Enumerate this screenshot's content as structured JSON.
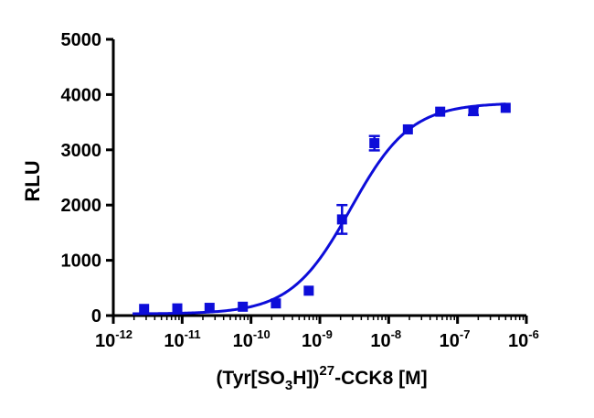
{
  "chart_data": {
    "type": "scatter",
    "xlabel": "(Tyr[SO3H])27-CCK8 [M]",
    "xlabel_parts": {
      "prefix": "(Tyr[SO",
      "sub": "3",
      "mid": "H])",
      "sup": "27",
      "suffix": "-CCK8 [M]"
    },
    "ylabel": "RLU",
    "x_scale": "log",
    "xlim": [
      1e-12,
      1e-06
    ],
    "ylim": [
      0,
      5000
    ],
    "grid": false,
    "legend": "none",
    "color": "#0d0dd9",
    "x_ticks": [
      {
        "base": "10",
        "exp": "-12"
      },
      {
        "base": "10",
        "exp": "-11"
      },
      {
        "base": "10",
        "exp": "-10"
      },
      {
        "base": "10",
        "exp": "-9"
      },
      {
        "base": "10",
        "exp": "-8"
      },
      {
        "base": "10",
        "exp": "-7"
      },
      {
        "base": "10",
        "exp": "-6"
      }
    ],
    "y_ticks": [
      "0",
      "1000",
      "2000",
      "3000",
      "4000",
      "5000"
    ],
    "series": [
      {
        "points": [
          {
            "x": 2.8e-12,
            "y": 120,
            "err": 0
          },
          {
            "x": 8.5e-12,
            "y": 130,
            "err": 0
          },
          {
            "x": 2.5e-11,
            "y": 140,
            "err": 0
          },
          {
            "x": 7.6e-11,
            "y": 160,
            "err": 0
          },
          {
            "x": 2.3e-10,
            "y": 220,
            "err": 0
          },
          {
            "x": 6.9e-10,
            "y": 450,
            "err": 0
          },
          {
            "x": 2.1e-09,
            "y": 1740,
            "err": 260
          },
          {
            "x": 6.2e-09,
            "y": 3120,
            "err": 130
          },
          {
            "x": 1.9e-08,
            "y": 3370,
            "err": 0
          },
          {
            "x": 5.6e-08,
            "y": 3690,
            "err": 0
          },
          {
            "x": 1.7e-07,
            "y": 3700,
            "err": 70
          },
          {
            "x": 5e-07,
            "y": 3760,
            "err": 0
          }
        ]
      }
    ],
    "fit": {
      "model": "sigmoidal dose-response",
      "bottom": 30,
      "top": 3850,
      "log_ec50": -8.55,
      "hill_slope": 1.0
    }
  }
}
